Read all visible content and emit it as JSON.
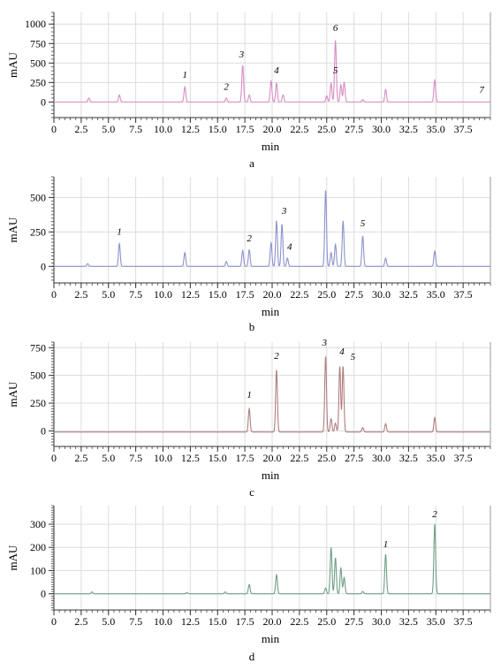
{
  "chart_data": [
    {
      "type": "line",
      "panel_label": "a",
      "xlabel": "min",
      "ylabel": "mAU",
      "xlim": [
        0,
        40
      ],
      "ylim": [
        -200,
        1150
      ],
      "xticks": [
        0,
        2.5,
        5,
        7.5,
        10,
        12.5,
        15,
        17.5,
        20,
        22.5,
        25,
        27.5,
        30,
        32.5,
        35,
        37.5
      ],
      "xtick_labels": [
        "0",
        "2.5",
        "5.0",
        "7.5",
        "10.0",
        "12.5",
        "15.0",
        "17.5",
        "20.0",
        "22.5",
        "25.0",
        "27.5",
        "30.0",
        "32.5",
        "35.0",
        "37.5"
      ],
      "yticks": [
        0,
        250,
        500,
        750,
        1000
      ],
      "ytick_labels": [
        "0",
        "250",
        "500",
        "750",
        "1000"
      ],
      "grid": true,
      "line_color": "#d88cc4",
      "baseline": 0,
      "peaks": [
        {
          "x": 3.2,
          "y": 50
        },
        {
          "x": 6.0,
          "y": 90
        },
        {
          "x": 12.0,
          "y": 195
        },
        {
          "x": 15.8,
          "y": 50
        },
        {
          "x": 17.3,
          "y": 470
        },
        {
          "x": 17.9,
          "y": 90
        },
        {
          "x": 19.9,
          "y": 270
        },
        {
          "x": 20.4,
          "y": 240
        },
        {
          "x": 21.0,
          "y": 90
        },
        {
          "x": 25.0,
          "y": 80
        },
        {
          "x": 25.4,
          "y": 240
        },
        {
          "x": 25.8,
          "y": 790
        },
        {
          "x": 26.3,
          "y": 220
        },
        {
          "x": 26.6,
          "y": 250
        },
        {
          "x": 28.3,
          "y": 30
        },
        {
          "x": 30.4,
          "y": 160
        },
        {
          "x": 34.9,
          "y": 280
        }
      ],
      "annotations": [
        {
          "text": "1",
          "x": 12.0,
          "y": 310
        },
        {
          "text": "2",
          "x": 15.8,
          "y": 160
        },
        {
          "text": "3",
          "x": 17.2,
          "y": 570
        },
        {
          "text": "4",
          "x": 20.4,
          "y": 370
        },
        {
          "text": "5",
          "x": 25.8,
          "y": 370
        },
        {
          "text": "6",
          "x": 25.8,
          "y": 910
        },
        {
          "text": "7",
          "x": 39.2,
          "y": 120
        }
      ]
    },
    {
      "type": "line",
      "panel_label": "b",
      "xlabel": "min",
      "ylabel": "mAU",
      "xlim": [
        0,
        40
      ],
      "ylim": [
        -120,
        650
      ],
      "xticks": [
        0,
        2.5,
        5,
        7.5,
        10,
        12.5,
        15,
        17.5,
        20,
        22.5,
        25,
        27.5,
        30,
        32.5,
        35,
        37.5
      ],
      "xtick_labels": [
        "0",
        "2.5",
        "5.0",
        "7.5",
        "10.0",
        "12.5",
        "15.0",
        "17.5",
        "20.0",
        "22.5",
        "25.0",
        "27.5",
        "30.0",
        "32.5",
        "35.0",
        "37.5"
      ],
      "yticks": [
        0,
        250,
        500
      ],
      "ytick_labels": [
        "0",
        "250",
        "500"
      ],
      "grid": true,
      "line_color": "#8b93cc",
      "baseline": 0,
      "peaks": [
        {
          "x": 3.1,
          "y": 20
        },
        {
          "x": 6.0,
          "y": 165
        },
        {
          "x": 12.0,
          "y": 100
        },
        {
          "x": 15.8,
          "y": 35
        },
        {
          "x": 17.3,
          "y": 115
        },
        {
          "x": 17.9,
          "y": 120
        },
        {
          "x": 19.9,
          "y": 170
        },
        {
          "x": 20.4,
          "y": 330
        },
        {
          "x": 20.9,
          "y": 305
        },
        {
          "x": 21.4,
          "y": 60
        },
        {
          "x": 24.9,
          "y": 550
        },
        {
          "x": 25.4,
          "y": 100
        },
        {
          "x": 25.8,
          "y": 160
        },
        {
          "x": 26.5,
          "y": 330
        },
        {
          "x": 28.3,
          "y": 220
        },
        {
          "x": 30.4,
          "y": 60
        },
        {
          "x": 34.9,
          "y": 110
        }
      ],
      "annotations": [
        {
          "text": "1",
          "x": 6.0,
          "y": 230
        },
        {
          "text": "2",
          "x": 17.9,
          "y": 180
        },
        {
          "text": "3",
          "x": 21.1,
          "y": 380
        },
        {
          "text": "4",
          "x": 21.6,
          "y": 120
        },
        {
          "text": "5",
          "x": 28.3,
          "y": 290
        }
      ]
    },
    {
      "type": "line",
      "panel_label": "c",
      "xlabel": "min",
      "ylabel": "mAU",
      "xlim": [
        0,
        40
      ],
      "ylim": [
        -140,
        800
      ],
      "xticks": [
        0,
        2.5,
        5,
        7.5,
        10,
        12.5,
        15,
        17.5,
        20,
        22.5,
        25,
        27.5,
        30,
        32.5,
        35,
        37.5
      ],
      "xtick_labels": [
        "0",
        "2.5",
        "5.0",
        "7.5",
        "10.0",
        "12.5",
        "15.0",
        "17.5",
        "20.0",
        "22.5",
        "25.0",
        "27.5",
        "30.0",
        "32.5",
        "35.0",
        "37.5"
      ],
      "yticks": [
        0,
        250,
        500,
        750
      ],
      "ytick_labels": [
        "0",
        "250",
        "500",
        "750"
      ],
      "grid": true,
      "line_color": "#b07e7e",
      "baseline": -10,
      "peaks": [
        {
          "x": 17.9,
          "y": 210
        },
        {
          "x": 20.4,
          "y": 560
        },
        {
          "x": 24.9,
          "y": 680
        },
        {
          "x": 25.4,
          "y": 120
        },
        {
          "x": 25.8,
          "y": 80
        },
        {
          "x": 26.2,
          "y": 590
        },
        {
          "x": 26.5,
          "y": 590
        },
        {
          "x": 28.3,
          "y": 40
        },
        {
          "x": 30.4,
          "y": 75
        },
        {
          "x": 34.9,
          "y": 130
        }
      ],
      "annotations": [
        {
          "text": "1",
          "x": 17.9,
          "y": 300
        },
        {
          "text": "2",
          "x": 20.4,
          "y": 650
        },
        {
          "text": "3",
          "x": 24.8,
          "y": 770
        },
        {
          "text": "4",
          "x": 26.4,
          "y": 690
        },
        {
          "text": "5",
          "x": 27.4,
          "y": 640
        }
      ]
    },
    {
      "type": "line",
      "panel_label": "d",
      "xlabel": "min",
      "ylabel": "mAU",
      "xlim": [
        0,
        40
      ],
      "ylim": [
        -70,
        380
      ],
      "xticks": [
        0,
        2.5,
        5,
        7.5,
        10,
        12.5,
        15,
        17.5,
        20,
        22.5,
        25,
        27.5,
        30,
        32.5,
        35,
        37.5
      ],
      "xtick_labels": [
        "0",
        "2.5",
        "5.0",
        "7.5",
        "10.0",
        "12.5",
        "15.0",
        "17.5",
        "20.0",
        "22.5",
        "25.0",
        "27.5",
        "30.0",
        "32.5",
        "35.0",
        "37.5"
      ],
      "yticks": [
        0,
        100,
        200,
        300
      ],
      "ytick_labels": [
        "0",
        "100",
        "200",
        "300"
      ],
      "grid": true,
      "line_color": "#6f9f86",
      "baseline": 0,
      "peaks": [
        {
          "x": 3.5,
          "y": 8
        },
        {
          "x": 12.2,
          "y": 5
        },
        {
          "x": 15.7,
          "y": 8
        },
        {
          "x": 17.9,
          "y": 40
        },
        {
          "x": 20.4,
          "y": 82
        },
        {
          "x": 24.9,
          "y": 25
        },
        {
          "x": 25.4,
          "y": 200
        },
        {
          "x": 25.8,
          "y": 155
        },
        {
          "x": 26.3,
          "y": 110
        },
        {
          "x": 26.6,
          "y": 70
        },
        {
          "x": 28.3,
          "y": 10
        },
        {
          "x": 30.4,
          "y": 170
        },
        {
          "x": 34.9,
          "y": 300
        }
      ],
      "annotations": [
        {
          "text": "1",
          "x": 30.4,
          "y": 200
        },
        {
          "text": "2",
          "x": 34.9,
          "y": 330
        }
      ]
    }
  ]
}
